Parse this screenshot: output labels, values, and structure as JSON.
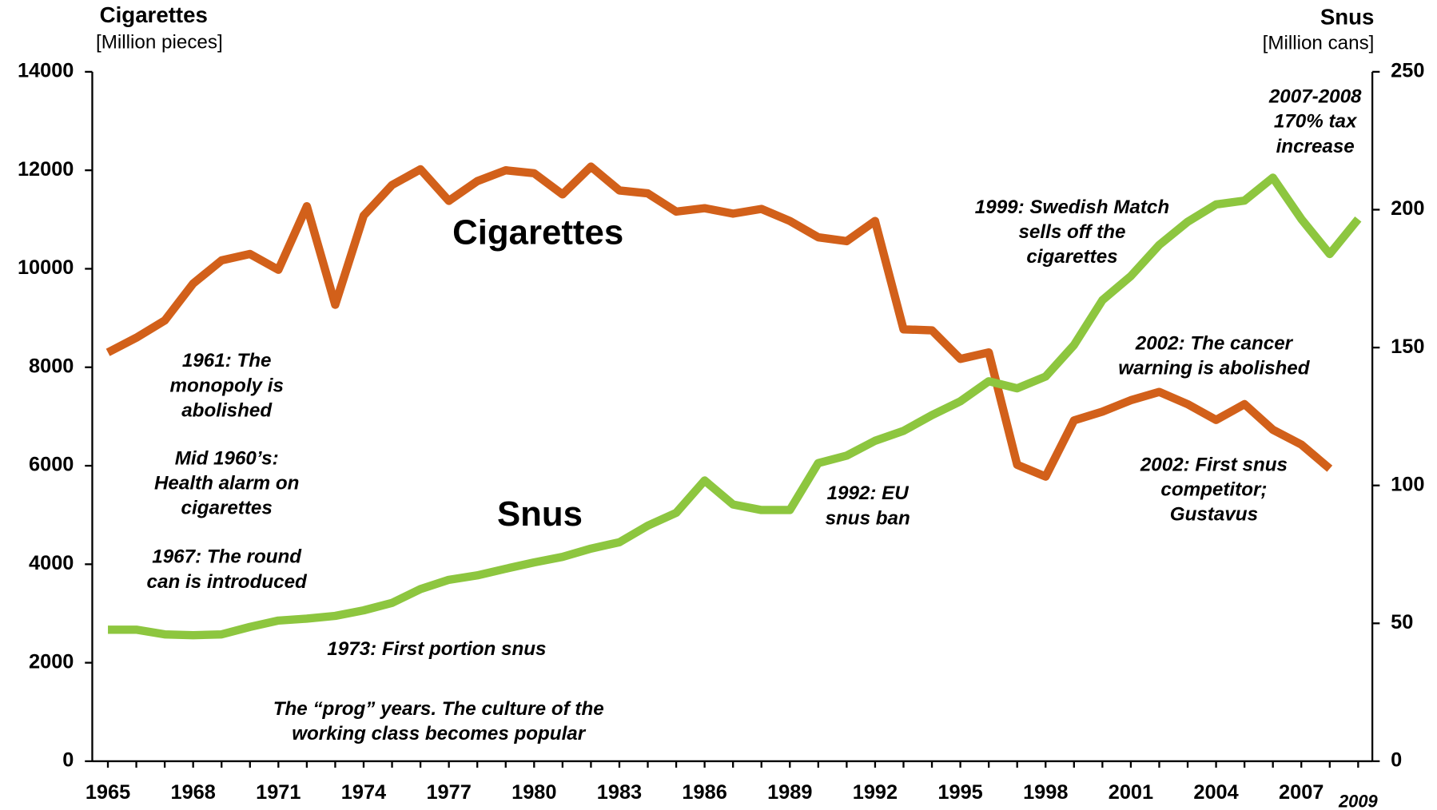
{
  "chart_data": {
    "type": "line",
    "y_title": "Cigarettes",
    "y_subtitle": "[Million pieces]",
    "y2_title": "Snus",
    "y2_subtitle": "[Million cans]",
    "x": [
      1965,
      1966,
      1967,
      1968,
      1969,
      1970,
      1971,
      1972,
      1973,
      1974,
      1975,
      1976,
      1977,
      1978,
      1979,
      1980,
      1981,
      1982,
      1983,
      1984,
      1985,
      1986,
      1987,
      1988,
      1989,
      1990,
      1991,
      1992,
      1993,
      1994,
      1995,
      1996,
      1997,
      1998,
      1999,
      2000,
      2001,
      2002,
      2003,
      2004,
      2005,
      2006,
      2007,
      2008,
      2009
    ],
    "series": [
      {
        "name": "Cigarettes",
        "color": "#d2601a",
        "axis": "y",
        "values": [
          8300,
          8600,
          8950,
          9700,
          10170,
          10300,
          9980,
          11270,
          9270,
          11080,
          11700,
          12020,
          11380,
          11780,
          12000,
          11940,
          11510,
          12075,
          11590,
          11530,
          11160,
          11230,
          11120,
          11215,
          10970,
          10640,
          10560,
          10970,
          8770,
          8750,
          8170,
          8300,
          6020,
          5780,
          6920,
          7100,
          7330,
          7500,
          7250,
          6930,
          7250,
          6730,
          6430,
          5940,
          null
        ]
      },
      {
        "name": "Snus",
        "color": "#8dc63f",
        "axis": "y2",
        "values": [
          47.7,
          47.7,
          46,
          45.7,
          46,
          48.7,
          51,
          51.7,
          52.7,
          54.7,
          57.4,
          62.4,
          65.8,
          67.4,
          69.8,
          72.1,
          74.1,
          77.1,
          79.4,
          85.4,
          90.1,
          101.8,
          93.1,
          91.1,
          91.1,
          108.1,
          110.8,
          116.2,
          119.8,
          125.5,
          130.5,
          137.8,
          135.2,
          139.5,
          150.9,
          167.2,
          175.9,
          187.2,
          195.6,
          201.9,
          203.3,
          211.6,
          196.6,
          183.9,
          196.6
        ]
      }
    ],
    "xlim": [
      1964.45,
      2009.5
    ],
    "xticks": [
      1965,
      1968,
      1971,
      1974,
      1977,
      1980,
      1983,
      1986,
      1989,
      1992,
      1995,
      1998,
      2001,
      2004,
      2007,
      2009
    ],
    "ylim": [
      0,
      14000
    ],
    "yticks": [
      0,
      2000,
      4000,
      6000,
      8000,
      10000,
      12000,
      14000
    ],
    "y2lim": [
      0,
      250
    ],
    "y2ticks": [
      0,
      50,
      100,
      150,
      200,
      250
    ],
    "annotations": [
      {
        "lines": [
          "1961: The",
          "monopoly is",
          "abolished"
        ]
      },
      {
        "lines": [
          "Mid 1960’s:",
          "Health alarm on",
          "cigarettes"
        ]
      },
      {
        "lines": [
          "1967: The round",
          "can is introduced"
        ]
      },
      {
        "lines": [
          "1973: First  portion snus"
        ]
      },
      {
        "lines": [
          "The “prog” years. The culture of the",
          "working class becomes popular"
        ]
      },
      {
        "lines": [
          "1992: EU",
          "snus ban"
        ]
      },
      {
        "lines": [
          "1999: Swedish Match",
          "sells off the",
          "cigarettes"
        ]
      },
      {
        "lines": [
          "2002: The cancer",
          "warning is abolished"
        ]
      },
      {
        "lines": [
          "2002: First snus",
          "competitor;",
          "Gustavus"
        ]
      },
      {
        "lines": [
          "2007-2008",
          "170% tax",
          "increase"
        ]
      }
    ]
  }
}
